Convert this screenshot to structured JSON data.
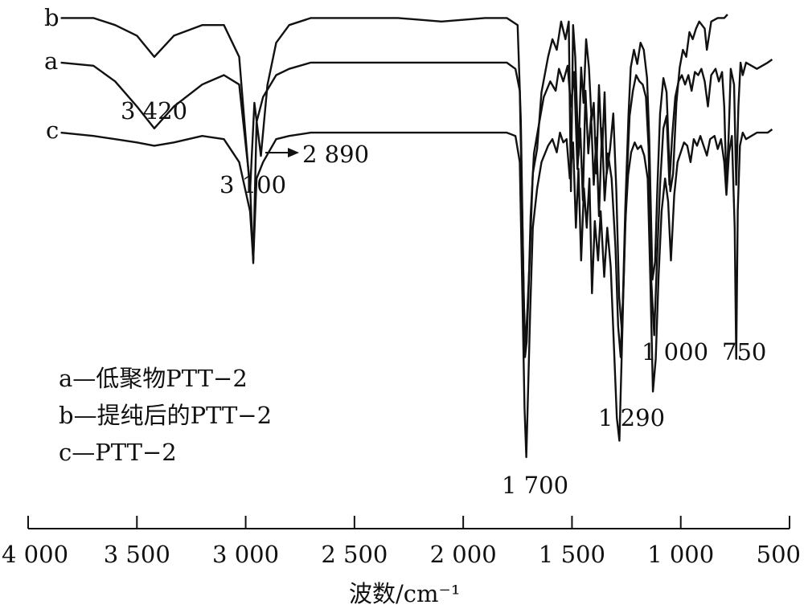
{
  "chart_data": {
    "type": "line",
    "title": "",
    "xlabel": "波数/cm⁻¹",
    "ylabel": "",
    "xlim": [
      4000,
      500
    ],
    "x_reversed": true,
    "grid": false,
    "xticks": [
      4000,
      3500,
      3000,
      2500,
      2000,
      1500,
      1000,
      500
    ],
    "xtick_labels": [
      "4 000",
      "3 500",
      "3 000",
      "2 500",
      "2 000",
      "1 500",
      "1 000",
      "500"
    ],
    "series_labels": [
      "b",
      "a",
      "c"
    ],
    "legend": {
      "placement": "bottom-left",
      "entries": [
        "a—低聚物PTT−2",
        "b—提纯后的PTT−2",
        "c—PTT−2"
      ]
    },
    "annotations": [
      {
        "text": "3 420",
        "x": 3420
      },
      {
        "text": "3 100",
        "x": 3100
      },
      {
        "text": "2 890",
        "x": 2890
      },
      {
        "text": "1 700",
        "x": 1700
      },
      {
        "text": "1 290",
        "x": 1290
      },
      {
        "text": "1 000",
        "x": 1000
      },
      {
        "text": "750",
        "x": 750
      }
    ],
    "series": [
      {
        "name": "b",
        "offset": 2,
        "points": [
          [
            3850,
            0.99
          ],
          [
            3700,
            0.99
          ],
          [
            3600,
            0.97
          ],
          [
            3500,
            0.94
          ],
          [
            3420,
            0.88
          ],
          [
            3330,
            0.94
          ],
          [
            3200,
            0.97
          ],
          [
            3100,
            0.97
          ],
          [
            3030,
            0.88
          ],
          [
            2980,
            0.5
          ],
          [
            2960,
            0.75
          ],
          [
            2930,
            0.6
          ],
          [
            2900,
            0.8
          ],
          [
            2860,
            0.92
          ],
          [
            2800,
            0.97
          ],
          [
            2700,
            0.99
          ],
          [
            2500,
            0.99
          ],
          [
            2300,
            0.99
          ],
          [
            2100,
            0.98
          ],
          [
            1900,
            0.99
          ],
          [
            1800,
            0.99
          ],
          [
            1750,
            0.97
          ],
          [
            1735,
            0.7
          ],
          [
            1722,
            0.2
          ],
          [
            1714,
            0.05
          ],
          [
            1706,
            0.15
          ],
          [
            1695,
            0.3
          ],
          [
            1680,
            0.55
          ],
          [
            1660,
            0.62
          ],
          [
            1640,
            0.78
          ],
          [
            1610,
            0.88
          ],
          [
            1590,
            0.93
          ],
          [
            1570,
            0.9
          ],
          [
            1550,
            0.98
          ],
          [
            1530,
            0.93
          ],
          [
            1515,
            0.98
          ],
          [
            1505,
            0.5
          ],
          [
            1495,
            0.97
          ],
          [
            1485,
            0.88
          ],
          [
            1470,
            0.6
          ],
          [
            1458,
            0.85
          ],
          [
            1447,
            0.75
          ],
          [
            1435,
            0.93
          ],
          [
            1422,
            0.85
          ],
          [
            1410,
            0.7
          ],
          [
            1400,
            0.75
          ],
          [
            1388,
            0.55
          ],
          [
            1376,
            0.8
          ],
          [
            1362,
            0.6
          ],
          [
            1350,
            0.78
          ],
          [
            1340,
            0.55
          ],
          [
            1325,
            0.62
          ],
          [
            1310,
            0.72
          ],
          [
            1296,
            0.5
          ],
          [
            1283,
            0.2
          ],
          [
            1270,
            0.1
          ],
          [
            1255,
            0.45
          ],
          [
            1240,
            0.72
          ],
          [
            1230,
            0.85
          ],
          [
            1215,
            0.9
          ],
          [
            1200,
            0.86
          ],
          [
            1185,
            0.92
          ],
          [
            1170,
            0.9
          ],
          [
            1155,
            0.82
          ],
          [
            1145,
            0.65
          ],
          [
            1130,
            0.25
          ],
          [
            1118,
            0.3
          ],
          [
            1108,
            0.5
          ],
          [
            1095,
            0.72
          ],
          [
            1080,
            0.82
          ],
          [
            1065,
            0.78
          ],
          [
            1048,
            0.5
          ],
          [
            1035,
            0.55
          ],
          [
            1020,
            0.75
          ],
          [
            1005,
            0.85
          ],
          [
            990,
            0.9
          ],
          [
            975,
            0.88
          ],
          [
            960,
            0.95
          ],
          [
            945,
            0.93
          ],
          [
            930,
            0.96
          ],
          [
            915,
            0.98
          ],
          [
            890,
            0.96
          ],
          [
            880,
            0.9
          ],
          [
            860,
            0.98
          ],
          [
            830,
            0.99
          ],
          [
            800,
            0.99
          ],
          [
            785,
            1.0
          ]
        ]
      },
      {
        "name": "a",
        "offset": 1,
        "points": [
          [
            3850,
            0.99
          ],
          [
            3700,
            0.98
          ],
          [
            3600,
            0.93
          ],
          [
            3500,
            0.85
          ],
          [
            3420,
            0.78
          ],
          [
            3330,
            0.85
          ],
          [
            3200,
            0.92
          ],
          [
            3100,
            0.95
          ],
          [
            3030,
            0.92
          ],
          [
            2980,
            0.6
          ],
          [
            2965,
            0.35
          ],
          [
            2950,
            0.8
          ],
          [
            2920,
            0.88
          ],
          [
            2860,
            0.95
          ],
          [
            2800,
            0.97
          ],
          [
            2700,
            0.99
          ],
          [
            2500,
            0.99
          ],
          [
            2300,
            0.99
          ],
          [
            2100,
            0.99
          ],
          [
            1900,
            0.99
          ],
          [
            1800,
            0.99
          ],
          [
            1760,
            0.97
          ],
          [
            1740,
            0.9
          ],
          [
            1726,
            0.4
          ],
          [
            1716,
            0.05
          ],
          [
            1708,
            0.1
          ],
          [
            1700,
            0.25
          ],
          [
            1690,
            0.5
          ],
          [
            1675,
            0.7
          ],
          [
            1650,
            0.8
          ],
          [
            1630,
            0.88
          ],
          [
            1600,
            0.93
          ],
          [
            1575,
            0.9
          ],
          [
            1560,
            0.97
          ],
          [
            1540,
            0.93
          ],
          [
            1520,
            0.98
          ],
          [
            1505,
            0.85
          ],
          [
            1490,
            0.96
          ],
          [
            1475,
            0.65
          ],
          [
            1462,
            0.78
          ],
          [
            1450,
            0.55
          ],
          [
            1438,
            0.9
          ],
          [
            1425,
            0.7
          ],
          [
            1412,
            0.82
          ],
          [
            1400,
            0.6
          ],
          [
            1388,
            0.75
          ],
          [
            1376,
            0.5
          ],
          [
            1362,
            0.78
          ],
          [
            1350,
            0.55
          ],
          [
            1335,
            0.7
          ],
          [
            1318,
            0.62
          ],
          [
            1300,
            0.4
          ],
          [
            1288,
            0.15
          ],
          [
            1276,
            0.05
          ],
          [
            1262,
            0.3
          ],
          [
            1248,
            0.62
          ],
          [
            1235,
            0.82
          ],
          [
            1220,
            0.9
          ],
          [
            1205,
            0.95
          ],
          [
            1190,
            0.93
          ],
          [
            1175,
            0.92
          ],
          [
            1160,
            0.88
          ],
          [
            1148,
            0.72
          ],
          [
            1136,
            0.3
          ],
          [
            1122,
            0.12
          ],
          [
            1110,
            0.35
          ],
          [
            1095,
            0.6
          ],
          [
            1080,
            0.78
          ],
          [
            1065,
            0.82
          ],
          [
            1052,
            0.6
          ],
          [
            1040,
            0.75
          ],
          [
            1025,
            0.88
          ],
          [
            1010,
            0.93
          ],
          [
            995,
            0.95
          ],
          [
            980,
            0.92
          ],
          [
            965,
            0.95
          ],
          [
            950,
            0.9
          ],
          [
            935,
            0.96
          ],
          [
            920,
            0.95
          ],
          [
            905,
            0.97
          ],
          [
            890,
            0.93
          ],
          [
            875,
            0.85
          ],
          [
            860,
            0.95
          ],
          [
            840,
            0.97
          ],
          [
            825,
            0.93
          ],
          [
            810,
            0.96
          ],
          [
            800,
            0.85
          ],
          [
            790,
            0.6
          ],
          [
            780,
            0.75
          ],
          [
            770,
            0.97
          ],
          [
            755,
            0.92
          ],
          [
            745,
            0.6
          ],
          [
            735,
            0.85
          ],
          [
            725,
            0.99
          ],
          [
            715,
            0.95
          ],
          [
            700,
            0.99
          ],
          [
            650,
            0.97
          ],
          [
            600,
            0.99
          ],
          [
            580,
            1.0
          ]
        ]
      },
      {
        "name": "c",
        "offset": 0,
        "points": [
          [
            3850,
            0.99
          ],
          [
            3700,
            0.98
          ],
          [
            3600,
            0.97
          ],
          [
            3500,
            0.96
          ],
          [
            3420,
            0.95
          ],
          [
            3330,
            0.96
          ],
          [
            3200,
            0.98
          ],
          [
            3100,
            0.97
          ],
          [
            3030,
            0.9
          ],
          [
            2980,
            0.75
          ],
          [
            2965,
            0.6
          ],
          [
            2950,
            0.85
          ],
          [
            2920,
            0.9
          ],
          [
            2860,
            0.97
          ],
          [
            2800,
            0.98
          ],
          [
            2700,
            0.99
          ],
          [
            2500,
            0.99
          ],
          [
            2300,
            0.99
          ],
          [
            2100,
            0.99
          ],
          [
            1900,
            0.99
          ],
          [
            1800,
            0.99
          ],
          [
            1760,
            0.98
          ],
          [
            1740,
            0.9
          ],
          [
            1728,
            0.5
          ],
          [
            1718,
            0.15
          ],
          [
            1710,
            0.0
          ],
          [
            1702,
            0.2
          ],
          [
            1692,
            0.45
          ],
          [
            1680,
            0.7
          ],
          [
            1660,
            0.82
          ],
          [
            1640,
            0.9
          ],
          [
            1610,
            0.95
          ],
          [
            1590,
            0.97
          ],
          [
            1570,
            0.93
          ],
          [
            1555,
            0.99
          ],
          [
            1540,
            0.96
          ],
          [
            1525,
            0.97
          ],
          [
            1510,
            0.85
          ],
          [
            1495,
            0.96
          ],
          [
            1482,
            0.7
          ],
          [
            1470,
            0.88
          ],
          [
            1458,
            0.6
          ],
          [
            1445,
            0.82
          ],
          [
            1432,
            0.7
          ],
          [
            1420,
            0.85
          ],
          [
            1408,
            0.5
          ],
          [
            1395,
            0.72
          ],
          [
            1380,
            0.6
          ],
          [
            1368,
            0.75
          ],
          [
            1352,
            0.55
          ],
          [
            1338,
            0.7
          ],
          [
            1322,
            0.58
          ],
          [
            1308,
            0.35
          ],
          [
            1294,
            0.12
          ],
          [
            1282,
            0.05
          ],
          [
            1270,
            0.35
          ],
          [
            1256,
            0.7
          ],
          [
            1242,
            0.86
          ],
          [
            1228,
            0.93
          ],
          [
            1212,
            0.96
          ],
          [
            1198,
            0.94
          ],
          [
            1183,
            0.95
          ],
          [
            1168,
            0.92
          ],
          [
            1152,
            0.85
          ],
          [
            1140,
            0.55
          ],
          [
            1128,
            0.2
          ],
          [
            1115,
            0.3
          ],
          [
            1102,
            0.55
          ],
          [
            1088,
            0.75
          ],
          [
            1072,
            0.85
          ],
          [
            1058,
            0.78
          ],
          [
            1045,
            0.6
          ],
          [
            1030,
            0.8
          ],
          [
            1015,
            0.9
          ],
          [
            1000,
            0.93
          ],
          [
            985,
            0.96
          ],
          [
            970,
            0.95
          ],
          [
            955,
            0.9
          ],
          [
            940,
            0.97
          ],
          [
            925,
            0.95
          ],
          [
            910,
            0.98
          ],
          [
            895,
            0.95
          ],
          [
            880,
            0.92
          ],
          [
            865,
            0.97
          ],
          [
            845,
            0.98
          ],
          [
            830,
            0.94
          ],
          [
            815,
            0.97
          ],
          [
            800,
            0.9
          ],
          [
            790,
            0.8
          ],
          [
            778,
            0.93
          ],
          [
            765,
            0.98
          ],
          [
            752,
            0.7
          ],
          [
            745,
            0.3
          ],
          [
            738,
            0.75
          ],
          [
            728,
            0.95
          ],
          [
            715,
            0.99
          ],
          [
            700,
            0.97
          ],
          [
            650,
            0.99
          ],
          [
            600,
            0.99
          ],
          [
            580,
            1.0
          ]
        ]
      }
    ]
  }
}
